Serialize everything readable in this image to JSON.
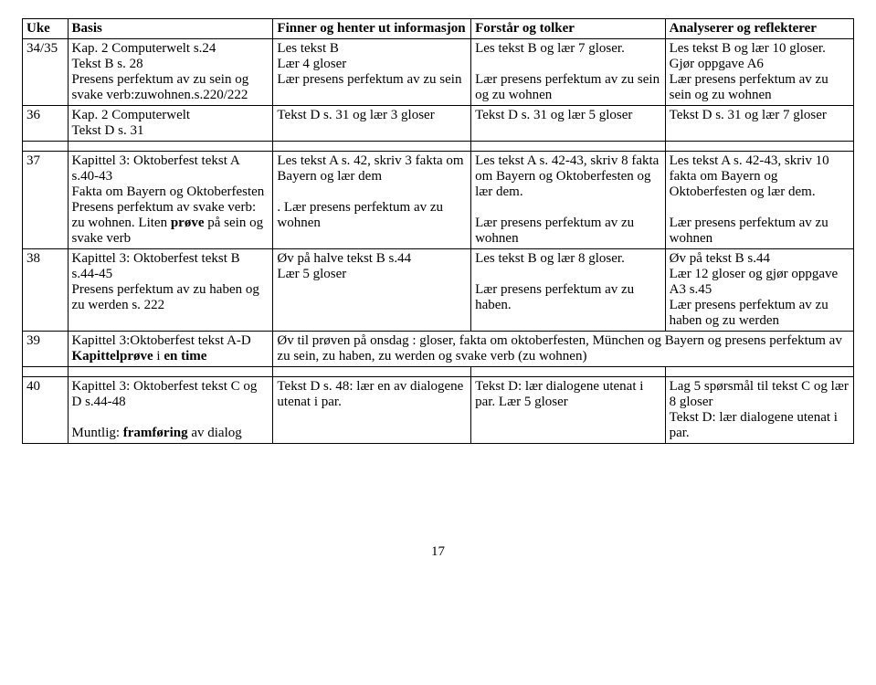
{
  "header": {
    "uke": "Uke",
    "basis": "Basis",
    "finner": "Finner og henter ut informasjon",
    "forstar": "Forstår og tolker",
    "analyse": "Analyserer og reflekterer"
  },
  "rows": {
    "r1": {
      "uke": "34/35",
      "basis": "Kap. 2 Computerwelt s.24\nTekst B s. 28\nPresens perfektum av zu sein og svake verb:zuwohnen.s.220/222",
      "finner": "Les tekst B\nLær 4 gloser\nLær presens perfektum av zu sein",
      "forstar": "Les tekst B og lær 7 gloser.\n\nLær presens perfektum av zu sein og zu wohnen",
      "analyse": "Les tekst B og lær 10 gloser.\nGjør oppgave A6\nLær presens perfektum av zu sein og zu wohnen"
    },
    "r2": {
      "uke": "36",
      "basis": "Kap. 2 Computerwelt\nTekst D s. 31",
      "finner": "Tekst D s. 31 og lær 3 gloser",
      "forstar": "Tekst D s. 31 og lær 5 gloser",
      "analyse": "Tekst D s. 31 og lær 7 gloser"
    },
    "r3": {
      "uke": "37",
      "basis_pre": "Kapittel 3: Oktoberfest tekst A s.40-43\nFakta om Bayern og Oktoberfesten\n Presens perfektum av svake verb: zu wohnen. Liten ",
      "basis_bold": "prøve",
      "basis_post": " på sein og svake verb",
      "finner": "Les tekst A s. 42, skriv 3 fakta om Bayern og lær dem\n\n. Lær presens perfektum av zu wohnen",
      "forstar": "Les tekst A s. 42-43,  skriv 8 fakta om Bayern og Oktoberfesten og lær dem.\n\n Lær presens perfektum av zu wohnen",
      "analyse": "Les tekst A s. 42-43,  skriv 10 fakta om Bayern og Oktoberfesten og lær dem.\n\nLær presens perfektum av zu wohnen"
    },
    "r4": {
      "uke": "38",
      "basis": "Kapittel 3: Oktoberfest tekst B s.44-45\nPresens perfektum av zu haben og zu werden s. 222",
      "finner": "Øv på halve tekst B s.44\nLær 5 gloser",
      "forstar": "Les tekst B og lær 8 gloser.\n\nLær presens perfektum av zu haben.",
      "analyse": "Øv på tekst B s.44\nLær 12 gloser og gjør oppgave A3 s.45\nLær presens perfektum av zu haben og zu werden"
    },
    "r5": {
      "uke": "39",
      "basis_pre": "Kapittel 3:Oktoberfest tekst A-D\n",
      "basis_bold": "Kapittelprøve",
      "basis_post": " i ",
      "basis_bold2": "en time",
      "merged": "Øv til prøven på onsdag : gloser, fakta om oktoberfesten, München og Bayern og presens perfektum av zu sein, zu haben, zu werden og svake verb (zu wohnen)"
    },
    "r6": {
      "uke": "40",
      "basis_pre": "Kapittel 3: Oktoberfest tekst C og D s.44-48\n\nMuntlig: ",
      "basis_bold": "framføring",
      "basis_post": " av dialog",
      "finner": "Tekst D s. 48: lær en av dialogene utenat i par.",
      "forstar": "Tekst D: lær dialogene utenat i par. Lær 5 gloser",
      "analyse": "Lag 5 spørsmål til tekst C og lær 8 gloser\nTekst D: lær dialogene utenat i par."
    }
  },
  "pageNumber": "17"
}
